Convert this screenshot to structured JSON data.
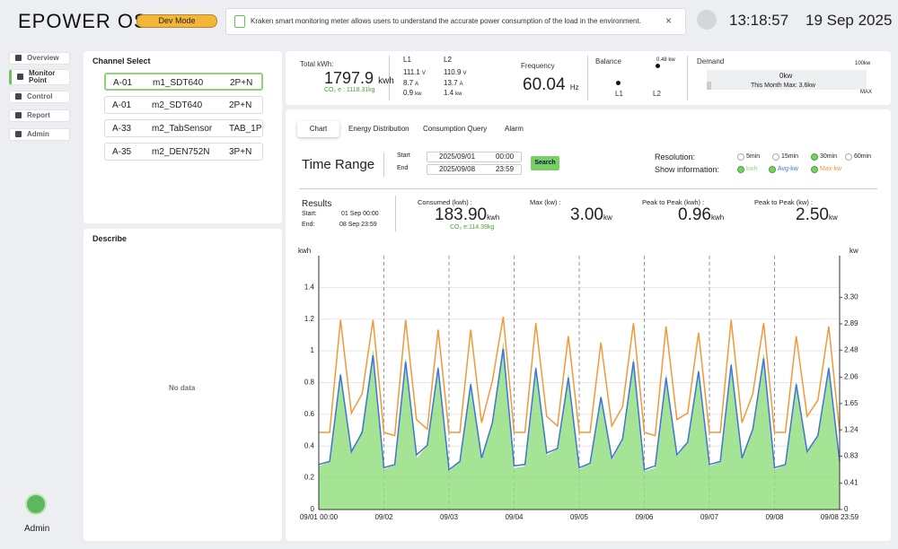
{
  "header": {
    "logo": "EPOWER OS",
    "badge": "Dev Mode",
    "notice": "Kraken smart monitoring meter allows users to understand the accurate power consumption of the load in the environment.",
    "time": "13:18:57",
    "date": "19 Sep 2025"
  },
  "sidebar": {
    "nav": [
      "Overview",
      "Monitor Point",
      "Control",
      "Report",
      "Admin"
    ],
    "active": 1,
    "user": "Admin"
  },
  "channels": {
    "title": "Channel Select",
    "selected": 0,
    "rows": [
      [
        "A-01",
        "m1_SDT640",
        "2P+N"
      ],
      [
        "A-01",
        "m2_SDT640",
        "2P+N"
      ],
      [
        "A-33",
        "m2_TabSensor",
        "TAB_1P"
      ],
      [
        "A-35",
        "m2_DEN752N",
        "3P+N"
      ]
    ]
  },
  "describe": {
    "title": "Describe",
    "empty": "No data"
  },
  "stats": {
    "total": {
      "label": "Total kWh:",
      "value": "1797.9",
      "unit": "kwh",
      "co2": "CO₂ e : 1118.31kg"
    },
    "lines": [
      {
        "name": "L1",
        "voltage": "111.1",
        "voltage_unit": "V",
        "current": "8.7",
        "current_unit": "A",
        "power": "0.9",
        "power_unit": "kw"
      },
      {
        "name": "L2",
        "voltage": "110.9",
        "voltage_unit": "V",
        "current": "13.7",
        "current_unit": "A",
        "power": "1.4",
        "power_unit": "kw"
      }
    ],
    "frequency": {
      "label": "Frequency",
      "value": "60.04",
      "unit": "Hz"
    },
    "balance": {
      "label": "Balance",
      "value": "0.48 kw",
      "left": "L1",
      "right": "L2"
    },
    "demand": {
      "label": "Demand",
      "scale_max": "100kw",
      "current": "0kw",
      "month_max": "This Month Max: 3.6kw",
      "max": "MAX"
    }
  },
  "controls": {
    "tabs": [
      "Chart",
      "Energy Distribution",
      "Consumption Query",
      "Alarm"
    ],
    "active_tab": 0,
    "time_range": "Time Range",
    "start_label": "Start",
    "start_date": "2025/09/01",
    "start_time": "00:00",
    "end_label": "End",
    "end_date": "2025/09/08",
    "end_time": "23:59",
    "search": "Search",
    "resolution_label": "Resolution:",
    "resolutions": [
      "5min",
      "15min",
      "30min",
      "60min"
    ],
    "resolution_selected": 2,
    "show_label": "Show information:"
  },
  "results": {
    "title": "Results",
    "start_label": "Start:",
    "start": "01 Sep 00:00",
    "end_label": "End:",
    "end": "08 Sep 23:59",
    "metrics": [
      {
        "label": "Consumed (kwh) :",
        "value": "183.90",
        "unit": "kwh",
        "note": "CO₂ e:114.39kg"
      },
      {
        "label": "Max (kw) :",
        "value": "3.00",
        "unit": "kw"
      },
      {
        "label": "Peak to Peak (kwh) :",
        "value": "0.96",
        "unit": "kwh"
      },
      {
        "label": "Peak to Peak (kw) :",
        "value": "2.50",
        "unit": "kw"
      }
    ]
  },
  "chart_data": {
    "type": "line",
    "y_label": "kwh",
    "y2_label": "kw",
    "categories": [
      "09/01 00:00",
      null,
      null,
      null,
      null,
      null,
      "09/02",
      null,
      null,
      null,
      null,
      null,
      "09/03",
      null,
      null,
      null,
      null,
      null,
      "09/04",
      null,
      null,
      null,
      null,
      null,
      "09/05",
      null,
      null,
      null,
      null,
      null,
      "09/06",
      null,
      null,
      null,
      null,
      null,
      "09/07",
      null,
      null,
      null,
      null,
      null,
      "09/08",
      null,
      null,
      null,
      null,
      null,
      "09/08 23:59"
    ],
    "ylim": [
      0,
      1.6
    ],
    "yticks": [
      0,
      0.2,
      0.4,
      0.6,
      0.8,
      1,
      1.2,
      1.4
    ],
    "y2lim": [
      0,
      3.95
    ],
    "y2ticks": [
      0,
      0.41,
      0.83,
      1.24,
      1.65,
      2.06,
      2.48,
      2.89,
      {
        "value": 3.3,
        "label": "3.30"
      }
    ],
    "grid": true,
    "series": [
      {
        "name": "kwh",
        "type": "area",
        "color": "#8fdc7a",
        "values": [
          0.27,
          0.3,
          0.85,
          0.35,
          0.5,
          1.0,
          0.25,
          0.28,
          0.95,
          0.32,
          0.4,
          0.9,
          0.24,
          0.3,
          0.8,
          0.3,
          0.55,
          1.05,
          0.26,
          0.27,
          0.9,
          0.34,
          0.38,
          0.85,
          0.25,
          0.29,
          0.7,
          0.3,
          0.45,
          0.95,
          0.24,
          0.26,
          0.85,
          0.33,
          0.42,
          0.88,
          0.27,
          0.3,
          0.92,
          0.31,
          0.5,
          0.98,
          0.25,
          0.28,
          0.8,
          0.35,
          0.47,
          0.9,
          0.3
        ]
      },
      {
        "name": "Avg-kw",
        "type": "line",
        "axis": "y2",
        "color": "#3f74d8",
        "values": [
          0.7,
          0.75,
          2.1,
          0.9,
          1.2,
          2.4,
          0.65,
          0.7,
          2.3,
          0.85,
          1.0,
          2.2,
          0.62,
          0.75,
          1.95,
          0.8,
          1.35,
          2.5,
          0.68,
          0.7,
          2.2,
          0.88,
          0.95,
          2.05,
          0.65,
          0.72,
          1.75,
          0.8,
          1.1,
          2.3,
          0.62,
          0.68,
          2.05,
          0.85,
          1.05,
          2.15,
          0.7,
          0.75,
          2.25,
          0.8,
          1.25,
          2.35,
          0.65,
          0.7,
          1.95,
          0.9,
          1.15,
          2.2,
          0.75
        ]
      },
      {
        "name": "Max-kw",
        "type": "line",
        "axis": "y2",
        "color": "#f0993a",
        "values": [
          1.2,
          1.2,
          2.95,
          1.5,
          1.8,
          2.95,
          1.2,
          1.15,
          2.95,
          1.4,
          1.25,
          2.8,
          1.2,
          1.2,
          2.8,
          1.35,
          2.0,
          3.0,
          1.2,
          1.2,
          2.9,
          1.45,
          1.3,
          2.7,
          1.2,
          1.2,
          2.6,
          1.3,
          1.6,
          2.9,
          1.2,
          1.15,
          2.85,
          1.4,
          1.5,
          2.75,
          1.2,
          1.2,
          2.95,
          1.35,
          1.8,
          2.9,
          1.2,
          1.2,
          2.7,
          1.45,
          1.7,
          2.85,
          1.2
        ]
      }
    ]
  }
}
